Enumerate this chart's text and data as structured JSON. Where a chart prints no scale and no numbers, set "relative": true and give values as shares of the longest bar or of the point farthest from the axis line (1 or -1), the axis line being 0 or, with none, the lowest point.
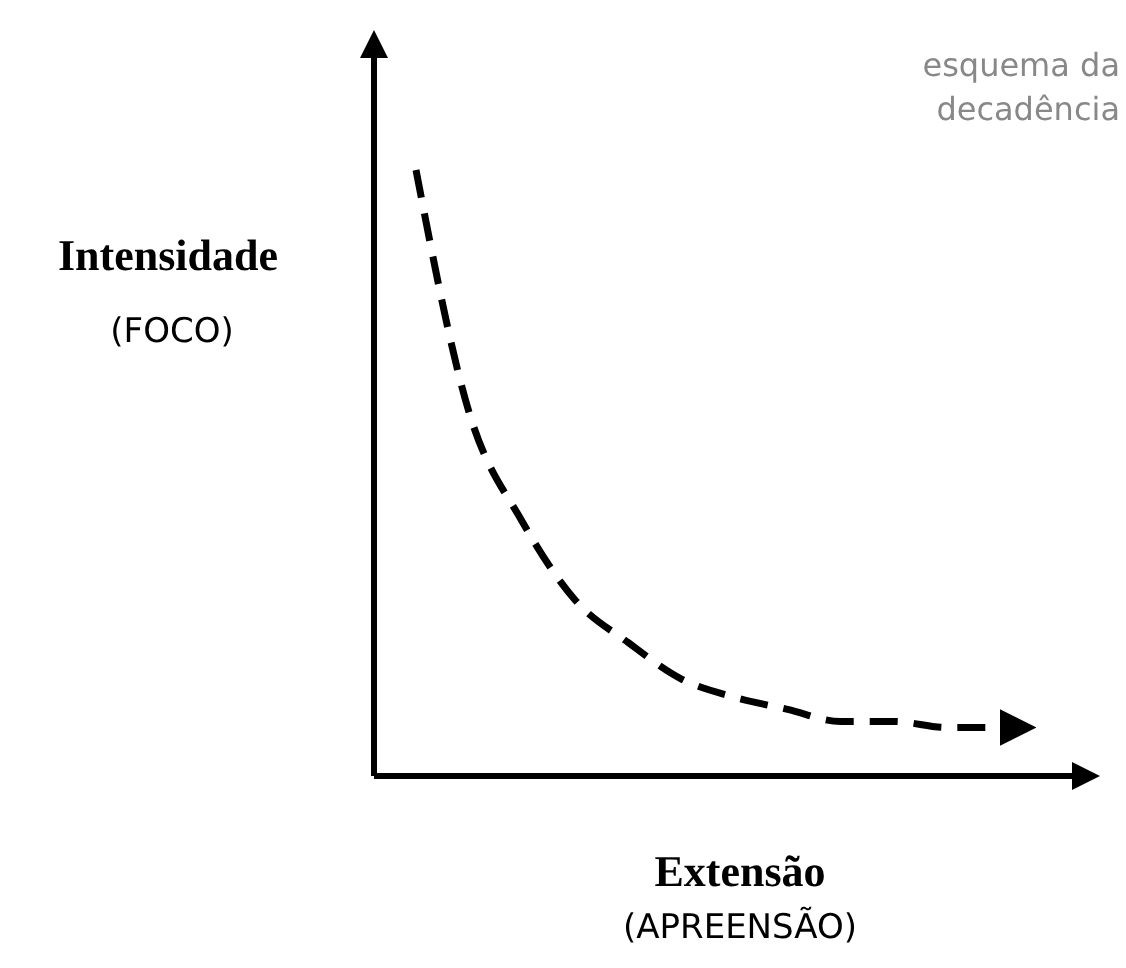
{
  "chart_data": {
    "type": "line",
    "relative": true,
    "xlabel": "Extensão\n(APREENSÃO)",
    "ylabel": "Intensidade\n(FOCO)",
    "annotations": [
      "esquema da decadência"
    ],
    "categories": [
      null,
      null,
      null,
      null,
      null,
      null,
      null,
      null,
      null,
      null,
      null,
      null
    ],
    "series": [
      {
        "color": "#000000",
        "values": [
          1,
          0.6,
          0.42,
          0.29,
          0.22,
          0.16,
          0.13,
          0.11,
          0.09,
          0.09,
          0.08,
          0.08
        ]
      }
    ],
    "line_style": "dashed"
  }
}
